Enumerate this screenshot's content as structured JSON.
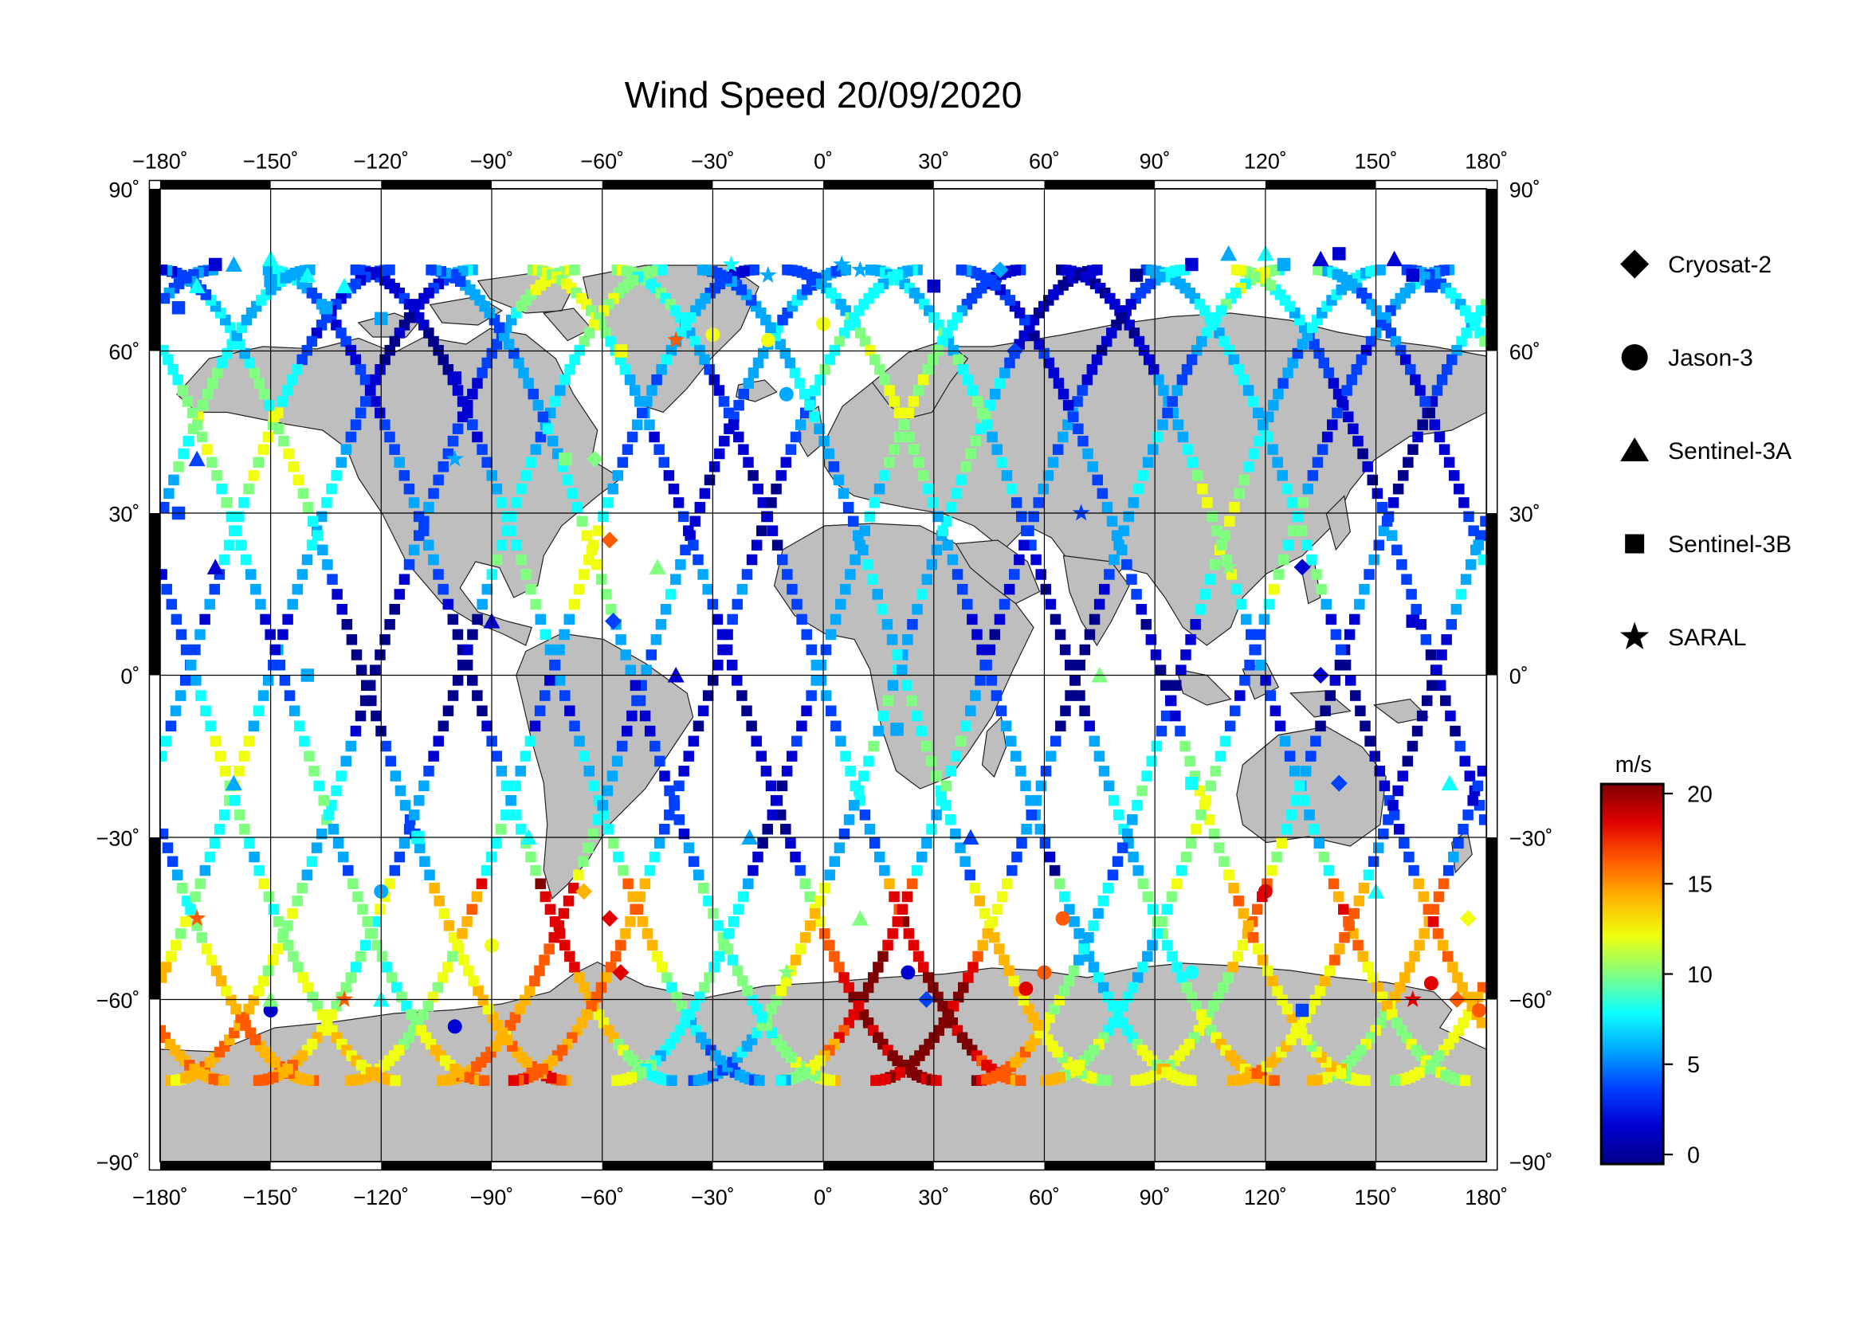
{
  "title": "Wind Speed 20/09/2020",
  "map": {
    "lon_range": [
      -180,
      180
    ],
    "lat_range": [
      -90,
      90
    ],
    "lon_ticks": [
      "−180˚",
      "−150˚",
      "−120˚",
      "−90˚",
      "−60˚",
      "−30˚",
      "0˚",
      "30˚",
      "60˚",
      "90˚",
      "120˚",
      "150˚",
      "180˚"
    ],
    "lat_ticks": [
      "90˚",
      "60˚",
      "30˚",
      "0˚",
      "−30˚",
      "−60˚",
      "−90˚"
    ],
    "grid": true,
    "land_color": "#bebebe",
    "ocean_color": "#ffffff"
  },
  "legend": {
    "items": [
      {
        "label": "Cryosat-2",
        "icon": "diamond-icon"
      },
      {
        "label": "Jason-3",
        "icon": "circle-icon"
      },
      {
        "label": "Sentinel-3A",
        "icon": "triangle-icon"
      },
      {
        "label": "Sentinel-3B",
        "icon": "square-icon"
      },
      {
        "label": "SARAL",
        "icon": "star-icon"
      }
    ]
  },
  "colorbar": {
    "unit": "m/s",
    "min": 0,
    "max": 20,
    "ticks": [
      "20",
      "15",
      "10",
      "5",
      "0"
    ],
    "colors": [
      "#7f0000",
      "#e00000",
      "#ff5a00",
      "#ffb400",
      "#f0ff10",
      "#80ff80",
      "#10ffff",
      "#00a8ff",
      "#0040ff",
      "#0000d0",
      "#00008a"
    ]
  },
  "chart_data": {
    "type": "scatter",
    "title": "Wind Speed 20/09/2020",
    "x_range": [
      -180,
      180
    ],
    "y_range": [
      -90,
      90
    ],
    "color_scale": [
      0,
      20
    ],
    "series": [
      {
        "name": "Cryosat-2",
        "marker": "diamond",
        "points": [
          [
            -62,
            40,
            11
          ],
          [
            -58,
            25,
            16
          ],
          [
            -57,
            10,
            4
          ],
          [
            -58,
            -45,
            18
          ],
          [
            -55,
            -55,
            19
          ],
          [
            48,
            75,
            6
          ],
          [
            52,
            60,
            5
          ],
          [
            130,
            20,
            2
          ],
          [
            135,
            0,
            3
          ],
          [
            140,
            -20,
            5
          ],
          [
            175,
            -45,
            12
          ],
          [
            172,
            -60,
            17
          ],
          [
            28,
            -60,
            4
          ],
          [
            -65,
            -40,
            14
          ]
        ]
      },
      {
        "name": "Jason-3",
        "marker": "circle",
        "points": [
          [
            -150,
            -62,
            2
          ],
          [
            -100,
            -65,
            3
          ],
          [
            -10,
            52,
            6
          ],
          [
            -15,
            62,
            13
          ],
          [
            -30,
            63,
            12
          ],
          [
            0,
            65,
            12
          ],
          [
            23,
            -55,
            2
          ],
          [
            55,
            -58,
            18
          ],
          [
            60,
            -55,
            17
          ],
          [
            65,
            -45,
            16
          ],
          [
            120,
            -40,
            18
          ],
          [
            165,
            -57,
            18
          ],
          [
            178,
            -62,
            17
          ],
          [
            -90,
            -50,
            12
          ],
          [
            -120,
            -40,
            7
          ],
          [
            100,
            -55,
            9
          ]
        ]
      },
      {
        "name": "Sentinel-3A",
        "marker": "triangle",
        "points": [
          [
            -170,
            72,
            8
          ],
          [
            -160,
            76,
            7
          ],
          [
            -150,
            77,
            8
          ],
          [
            -140,
            74,
            8
          ],
          [
            -130,
            72,
            9
          ],
          [
            -170,
            40,
            5
          ],
          [
            -165,
            20,
            3
          ],
          [
            -160,
            -20,
            7
          ],
          [
            -150,
            -60,
            11
          ],
          [
            -120,
            -60,
            9
          ],
          [
            -90,
            10,
            3
          ],
          [
            -80,
            -30,
            8
          ],
          [
            -45,
            20,
            11
          ],
          [
            -40,
            0,
            3
          ],
          [
            -20,
            -30,
            6
          ],
          [
            10,
            -45,
            11
          ],
          [
            40,
            -30,
            5
          ],
          [
            75,
            0,
            10
          ],
          [
            110,
            78,
            7
          ],
          [
            120,
            78,
            8
          ],
          [
            135,
            77,
            3
          ],
          [
            155,
            77,
            2
          ],
          [
            150,
            -40,
            9
          ],
          [
            170,
            -20,
            9
          ]
        ]
      },
      {
        "name": "Sentinel-3B",
        "marker": "square",
        "points": [
          [
            -175,
            68,
            5
          ],
          [
            -165,
            76,
            3
          ],
          [
            -150,
            73,
            7
          ],
          [
            -135,
            68,
            7
          ],
          [
            -120,
            66,
            6
          ],
          [
            -100,
            55,
            3
          ],
          [
            -55,
            60,
            12
          ],
          [
            30,
            72,
            3
          ],
          [
            85,
            74,
            1
          ],
          [
            100,
            76,
            3
          ],
          [
            125,
            76,
            6
          ],
          [
            140,
            78,
            2
          ],
          [
            160,
            74,
            2
          ],
          [
            165,
            72,
            4
          ],
          [
            -175,
            30,
            4
          ],
          [
            -140,
            0,
            6
          ],
          [
            -110,
            -30,
            8
          ],
          [
            -70,
            40,
            11
          ],
          [
            20,
            -10,
            6
          ],
          [
            100,
            -20,
            9
          ],
          [
            130,
            -62,
            4
          ],
          [
            160,
            10,
            3
          ]
        ]
      },
      {
        "name": "SARAL",
        "marker": "star",
        "points": [
          [
            -25,
            76,
            8
          ],
          [
            -15,
            74,
            7
          ],
          [
            5,
            76,
            7
          ],
          [
            10,
            75,
            6
          ],
          [
            -40,
            62,
            16
          ],
          [
            -130,
            -60,
            16
          ],
          [
            160,
            -60,
            18
          ],
          [
            -170,
            -45,
            17
          ],
          [
            -100,
            40,
            6
          ],
          [
            70,
            30,
            5
          ],
          [
            110,
            20,
            10
          ],
          [
            -10,
            -55,
            10
          ]
        ]
      }
    ]
  }
}
